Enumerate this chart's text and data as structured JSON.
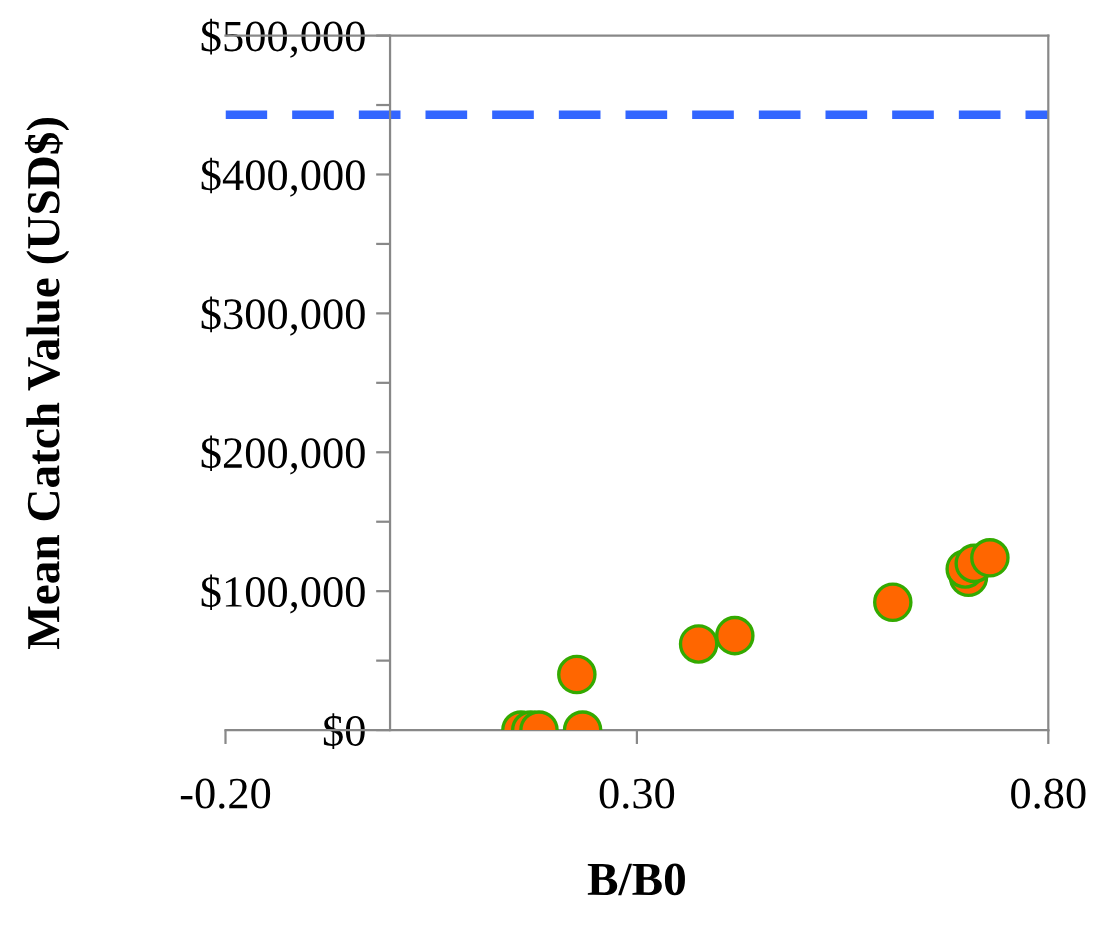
{
  "chart_data": {
    "type": "scatter",
    "xlabel": "B/B0",
    "ylabel": "Mean Catch Value (USD$)",
    "x": [
      0.159,
      0.171,
      0.181,
      0.234,
      0.227,
      0.375,
      0.419,
      0.611,
      0.703,
      0.699,
      0.71,
      0.729
    ],
    "series": [
      {
        "color": "#ff6600",
        "values": [
          0,
          0,
          0,
          0,
          40000,
          62000,
          68000,
          92000,
          110000,
          116000,
          120000,
          124000
        ]
      }
    ],
    "xlim": [
      -0.2,
      0.8
    ],
    "xticks": [
      {
        "value": -0.2,
        "label": "-0.20"
      },
      {
        "value": 0.3,
        "label": "0.30"
      },
      {
        "value": 0.8,
        "label": "0.80"
      }
    ],
    "ylim": [
      0,
      500000
    ],
    "yticks": [
      {
        "value": 0,
        "label": "$0"
      },
      {
        "value": 50000,
        "label": null
      },
      {
        "value": 100000,
        "label": "$100,000"
      },
      {
        "value": 150000,
        "label": null
      },
      {
        "value": 200000,
        "label": "$200,000"
      },
      {
        "value": 250000,
        "label": null
      },
      {
        "value": 300000,
        "label": "$300,000"
      },
      {
        "value": 350000,
        "label": null
      },
      {
        "value": 400000,
        "label": "$400,000"
      },
      {
        "value": 450000,
        "label": null
      },
      {
        "value": 500000,
        "label": "$500,000"
      }
    ],
    "ref_lines": [
      {
        "axis": "y",
        "value": 443000,
        "label": null,
        "color": "#3366ff",
        "line_style": "dashed"
      }
    ],
    "marker": "circle",
    "grid": false,
    "legend": false
  }
}
